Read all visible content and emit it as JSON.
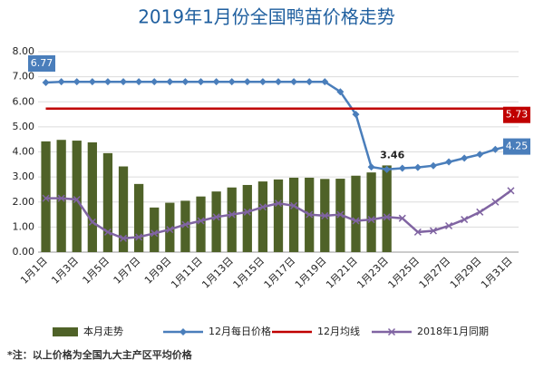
{
  "chart_data": {
    "type": "bar_line",
    "title": "2019年1月份全国鸭苗价格走势",
    "footnote": "*注：以上价格为全国九大主产区平均价格",
    "categories": [
      "1月1日",
      null,
      "1月3日",
      null,
      "1月5日",
      null,
      "1月7日",
      null,
      "1月9日",
      null,
      "1月11日",
      null,
      "1月13日",
      null,
      "1月15日",
      null,
      "1月17日",
      null,
      "1月19日",
      null,
      "1月21日",
      null,
      "1月23日",
      null,
      "1月25日",
      null,
      "1月27日",
      null,
      "1月29日",
      null,
      "1月31日"
    ],
    "ylim": [
      0,
      8
    ],
    "yticks": [
      {
        "value": 0,
        "label": "0.00"
      },
      {
        "value": 1,
        "label": "1.00"
      },
      {
        "value": 2,
        "label": "2.00"
      },
      {
        "value": 3,
        "label": "3.00"
      },
      {
        "value": 4,
        "label": "4.00"
      },
      {
        "value": 5,
        "label": "5.00"
      },
      {
        "value": 6,
        "label": "6.00"
      },
      {
        "value": 7,
        "label": "7.00"
      },
      {
        "value": 8,
        "label": "8.00"
      }
    ],
    "grid": true,
    "series": [
      {
        "name": "本月走势",
        "kind": "bar",
        "color": "#4f6228",
        "values": [
          4.42,
          4.48,
          4.45,
          4.38,
          3.95,
          3.42,
          2.72,
          1.78,
          1.97,
          2.05,
          2.22,
          2.42,
          2.58,
          2.68,
          2.82,
          2.9,
          2.97,
          2.97,
          2.92,
          2.93,
          3.05,
          3.18,
          3.46,
          null,
          null,
          null,
          null,
          null,
          null,
          null,
          null
        ]
      },
      {
        "name": "12月每日价格",
        "kind": "line",
        "marker": "diamond",
        "color": "#4a7ebb",
        "values": [
          6.77,
          6.8,
          6.8,
          6.8,
          6.8,
          6.8,
          6.8,
          6.8,
          6.8,
          6.8,
          6.8,
          6.8,
          6.8,
          6.8,
          6.8,
          6.8,
          6.8,
          6.8,
          6.8,
          6.4,
          5.5,
          3.4,
          3.3,
          3.35,
          3.38,
          3.45,
          3.6,
          3.75,
          3.9,
          4.1,
          4.25
        ]
      },
      {
        "name": "12月均线",
        "kind": "line",
        "marker": "none",
        "color": "#c00000",
        "values": [
          5.73,
          5.73,
          5.73,
          5.73,
          5.73,
          5.73,
          5.73,
          5.73,
          5.73,
          5.73,
          5.73,
          5.73,
          5.73,
          5.73,
          5.73,
          5.73,
          5.73,
          5.73,
          5.73,
          5.73,
          5.73,
          5.73,
          5.73,
          5.73,
          5.73,
          5.73,
          5.73,
          5.73,
          5.73,
          5.73,
          5.73
        ]
      },
      {
        "name": "2018年1月同期",
        "kind": "line",
        "marker": "x",
        "color": "#8064a2",
        "values": [
          2.15,
          2.15,
          2.1,
          1.2,
          0.8,
          0.55,
          0.6,
          0.75,
          0.9,
          1.1,
          1.25,
          1.4,
          1.5,
          1.6,
          1.8,
          1.95,
          1.85,
          1.5,
          1.45,
          1.5,
          1.25,
          1.3,
          1.4,
          1.35,
          0.8,
          0.85,
          1.05,
          1.3,
          1.6,
          2.0,
          2.45
        ]
      }
    ]
  }
}
